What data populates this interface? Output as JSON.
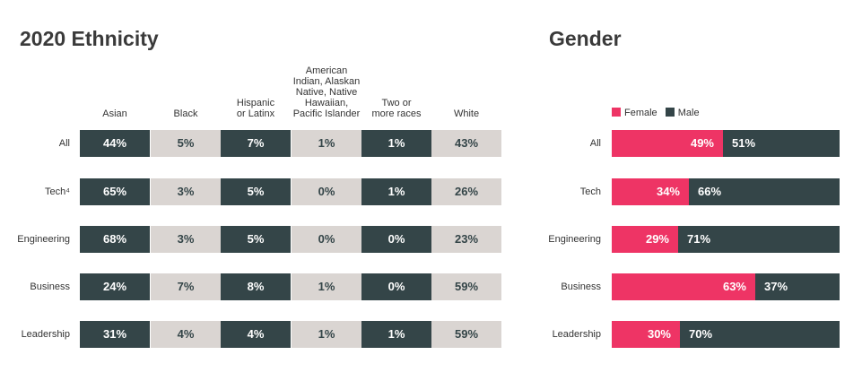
{
  "chart_data": [
    {
      "type": "table",
      "title": "2020 Ethnicity",
      "columns": [
        "Asian",
        "Black",
        "Hispanic or Latinx",
        "American Indian, Alaskan Native, Native Hawaiian, Pacific Islander",
        "Two or more races",
        "White"
      ],
      "column_lines": [
        [
          "Asian"
        ],
        [
          "Black"
        ],
        [
          "Hispanic",
          "or Latinx"
        ],
        [
          "American",
          "Indian, Alaskan",
          "Native, Native",
          "Hawaiian,",
          "Pacific Islander"
        ],
        [
          "Two or",
          "more races"
        ],
        [
          "White"
        ]
      ],
      "rows": [
        {
          "label": "All",
          "values": [
            "44%",
            "5%",
            "7%",
            "1%",
            "1%",
            "43%"
          ]
        },
        {
          "label": "Tech⁴",
          "values": [
            "65%",
            "3%",
            "5%",
            "0%",
            "1%",
            "26%"
          ]
        },
        {
          "label": "Engineering",
          "values": [
            "68%",
            "3%",
            "5%",
            "0%",
            "0%",
            "23%"
          ]
        },
        {
          "label": "Business",
          "values": [
            "24%",
            "7%",
            "8%",
            "1%",
            "0%",
            "59%"
          ]
        },
        {
          "label": "Leadership",
          "values": [
            "31%",
            "4%",
            "4%",
            "1%",
            "1%",
            "59%"
          ]
        }
      ]
    },
    {
      "type": "bar",
      "stacked": true,
      "orientation": "horizontal",
      "title": "Gender",
      "categories": [
        "All",
        "Tech",
        "Engineering",
        "Business",
        "Leadership"
      ],
      "series": [
        {
          "name": "Female",
          "values": [
            49,
            34,
            29,
            63,
            30
          ],
          "color": "#ee3465"
        },
        {
          "name": "Male",
          "values": [
            51,
            66,
            71,
            37,
            70
          ],
          "color": "#344548"
        }
      ],
      "legend": "top-left"
    }
  ],
  "colors": {
    "dark": "#344548",
    "light": "#dad5d2",
    "female": "#ee3465"
  }
}
